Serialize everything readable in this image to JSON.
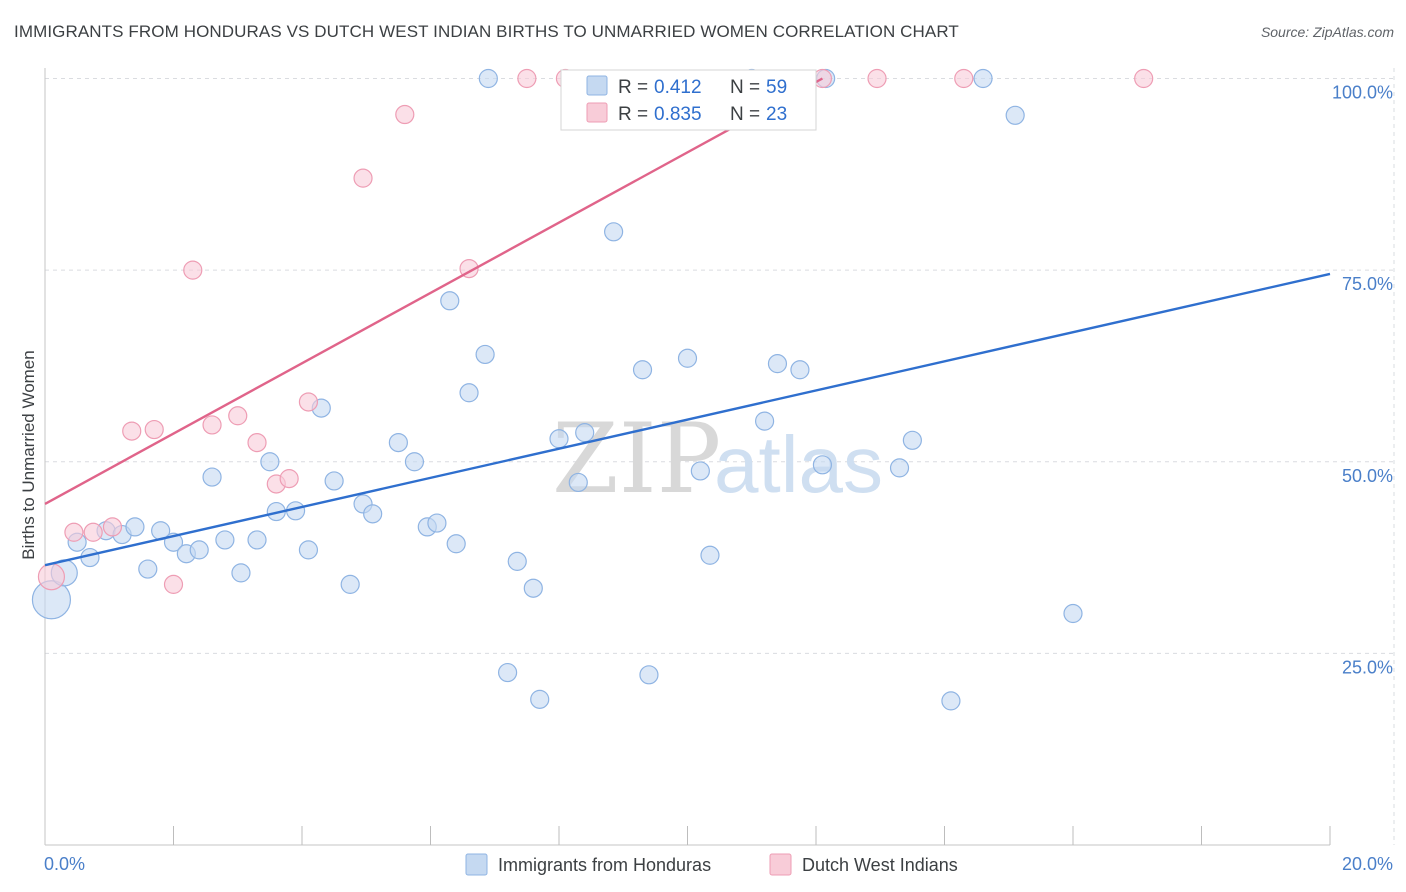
{
  "title": "IMMIGRANTS FROM HONDURAS VS DUTCH WEST INDIAN BIRTHS TO UNMARRIED WOMEN CORRELATION CHART",
  "source": "Source: ZipAtlas.com",
  "watermark": {
    "zip": "ZIP",
    "atlas": "atlas"
  },
  "colors": {
    "blue_fill": "#c5d9f1",
    "blue_stroke": "#8fb4e3",
    "blue_line": "#2f6fce",
    "pink_fill": "#f8ccd8",
    "pink_stroke": "#ee9db4",
    "pink_line": "#e0648a",
    "axis_text": "#4a7fc9",
    "grid": "#dadce0"
  },
  "legend": {
    "rows": [
      {
        "r_label": "R = ",
        "r_value": "0.412",
        "n_label": "N = ",
        "n_value": "59"
      },
      {
        "r_label": "R = ",
        "r_value": "0.835",
        "n_label": "N = ",
        "n_value": "23"
      }
    ]
  },
  "chart_data": {
    "type": "scatter",
    "title": "IMMIGRANTS FROM HONDURAS VS DUTCH WEST INDIAN BIRTHS TO UNMARRIED WOMEN CORRELATION CHART",
    "xlabel": "",
    "ylabel": "Births to Unmarried Women",
    "xlim": [
      0,
      20
    ],
    "ylim": [
      0,
      102
    ],
    "x_tick_labels": [
      "0.0%",
      "20.0%"
    ],
    "y_ticks": [
      25,
      50,
      75,
      100
    ],
    "y_tick_labels": [
      "25.0%",
      "50.0%",
      "75.0%",
      "100.0%"
    ],
    "grid": true,
    "legend_position": "bottom",
    "series": [
      {
        "name": "Immigrants from Honduras",
        "r": 0.412,
        "n": 59,
        "trend": {
          "x0": 0,
          "y0": 36.5,
          "x1": 20,
          "y1": 74.5
        },
        "points": [
          {
            "x": 0.1,
            "y": 32,
            "s": 3
          },
          {
            "x": 0.3,
            "y": 35.5,
            "s": 2
          },
          {
            "x": 0.5,
            "y": 39.5,
            "s": 1
          },
          {
            "x": 0.7,
            "y": 37.5,
            "s": 1
          },
          {
            "x": 0.95,
            "y": 41,
            "s": 1
          },
          {
            "x": 1.2,
            "y": 40.5,
            "s": 1
          },
          {
            "x": 1.4,
            "y": 41.5,
            "s": 1
          },
          {
            "x": 1.6,
            "y": 36,
            "s": 1
          },
          {
            "x": 1.8,
            "y": 41,
            "s": 1
          },
          {
            "x": 2.0,
            "y": 39.5,
            "s": 1
          },
          {
            "x": 2.2,
            "y": 38,
            "s": 1
          },
          {
            "x": 2.4,
            "y": 38.5,
            "s": 1
          },
          {
            "x": 2.6,
            "y": 48,
            "s": 1
          },
          {
            "x": 2.8,
            "y": 39.8,
            "s": 1
          },
          {
            "x": 3.05,
            "y": 35.5,
            "s": 1
          },
          {
            "x": 3.3,
            "y": 39.8,
            "s": 1
          },
          {
            "x": 3.5,
            "y": 50,
            "s": 1
          },
          {
            "x": 3.6,
            "y": 43.5,
            "s": 1
          },
          {
            "x": 3.9,
            "y": 43.6,
            "s": 1
          },
          {
            "x": 4.1,
            "y": 38.5,
            "s": 1
          },
          {
            "x": 4.3,
            "y": 57,
            "s": 1
          },
          {
            "x": 4.5,
            "y": 47.5,
            "s": 1
          },
          {
            "x": 4.75,
            "y": 34,
            "s": 1
          },
          {
            "x": 4.95,
            "y": 44.5,
            "s": 1
          },
          {
            "x": 5.1,
            "y": 43.2,
            "s": 1
          },
          {
            "x": 5.5,
            "y": 52.5,
            "s": 1
          },
          {
            "x": 5.75,
            "y": 50,
            "s": 1
          },
          {
            "x": 5.95,
            "y": 41.5,
            "s": 1
          },
          {
            "x": 6.1,
            "y": 42,
            "s": 1
          },
          {
            "x": 6.3,
            "y": 71,
            "s": 1
          },
          {
            "x": 6.4,
            "y": 39.3,
            "s": 1
          },
          {
            "x": 6.6,
            "y": 59,
            "s": 1
          },
          {
            "x": 6.85,
            "y": 64,
            "s": 1
          },
          {
            "x": 6.9,
            "y": 100,
            "s": 1
          },
          {
            "x": 7.2,
            "y": 22.5,
            "s": 1
          },
          {
            "x": 7.35,
            "y": 37,
            "s": 1
          },
          {
            "x": 7.6,
            "y": 33.5,
            "s": 1
          },
          {
            "x": 7.7,
            "y": 19,
            "s": 1
          },
          {
            "x": 8.0,
            "y": 53,
            "s": 1
          },
          {
            "x": 8.3,
            "y": 47.3,
            "s": 1
          },
          {
            "x": 8.4,
            "y": 53.8,
            "s": 1
          },
          {
            "x": 8.85,
            "y": 80,
            "s": 1
          },
          {
            "x": 9.3,
            "y": 62,
            "s": 1
          },
          {
            "x": 9.4,
            "y": 22.2,
            "s": 1
          },
          {
            "x": 10.0,
            "y": 63.5,
            "s": 1
          },
          {
            "x": 10.2,
            "y": 48.8,
            "s": 1
          },
          {
            "x": 10.35,
            "y": 37.8,
            "s": 1
          },
          {
            "x": 11.2,
            "y": 55.3,
            "s": 1
          },
          {
            "x": 11.4,
            "y": 62.8,
            "s": 1
          },
          {
            "x": 11.75,
            "y": 62,
            "s": 1
          },
          {
            "x": 12.1,
            "y": 49.6,
            "s": 1
          },
          {
            "x": 12.15,
            "y": 100,
            "s": 1
          },
          {
            "x": 13.3,
            "y": 49.2,
            "s": 1
          },
          {
            "x": 13.5,
            "y": 52.8,
            "s": 1
          },
          {
            "x": 14.1,
            "y": 18.8,
            "s": 1
          },
          {
            "x": 14.6,
            "y": 100,
            "s": 1
          },
          {
            "x": 15.1,
            "y": 95.2,
            "s": 1
          },
          {
            "x": 16.0,
            "y": 30.2,
            "s": 1
          },
          {
            "x": 11.0,
            "y": 100,
            "s": 1
          }
        ]
      },
      {
        "name": "Dutch West Indians",
        "r": 0.835,
        "n": 23,
        "trend": {
          "x0": 0,
          "y0": 44.5,
          "x1": 12.1,
          "y1": 100
        },
        "points": [
          {
            "x": 0.1,
            "y": 35,
            "s": 2
          },
          {
            "x": 0.45,
            "y": 40.8,
            "s": 1
          },
          {
            "x": 0.75,
            "y": 40.8,
            "s": 1
          },
          {
            "x": 1.05,
            "y": 41.5,
            "s": 1
          },
          {
            "x": 1.35,
            "y": 54,
            "s": 1
          },
          {
            "x": 1.7,
            "y": 54.2,
            "s": 1
          },
          {
            "x": 2.0,
            "y": 34,
            "s": 1
          },
          {
            "x": 2.3,
            "y": 75,
            "s": 1
          },
          {
            "x": 2.6,
            "y": 54.8,
            "s": 1
          },
          {
            "x": 3.0,
            "y": 56,
            "s": 1
          },
          {
            "x": 3.3,
            "y": 52.5,
            "s": 1
          },
          {
            "x": 3.6,
            "y": 47.1,
            "s": 1
          },
          {
            "x": 3.8,
            "y": 47.8,
            "s": 1
          },
          {
            "x": 4.1,
            "y": 57.8,
            "s": 1
          },
          {
            "x": 4.95,
            "y": 87,
            "s": 1
          },
          {
            "x": 5.6,
            "y": 95.3,
            "s": 1
          },
          {
            "x": 6.6,
            "y": 75.2,
            "s": 1
          },
          {
            "x": 7.5,
            "y": 100,
            "s": 1
          },
          {
            "x": 8.1,
            "y": 100,
            "s": 1
          },
          {
            "x": 12.1,
            "y": 100,
            "s": 1
          },
          {
            "x": 12.95,
            "y": 100,
            "s": 1
          },
          {
            "x": 14.3,
            "y": 100,
            "s": 1
          },
          {
            "x": 17.1,
            "y": 100,
            "s": 1
          }
        ]
      }
    ]
  }
}
